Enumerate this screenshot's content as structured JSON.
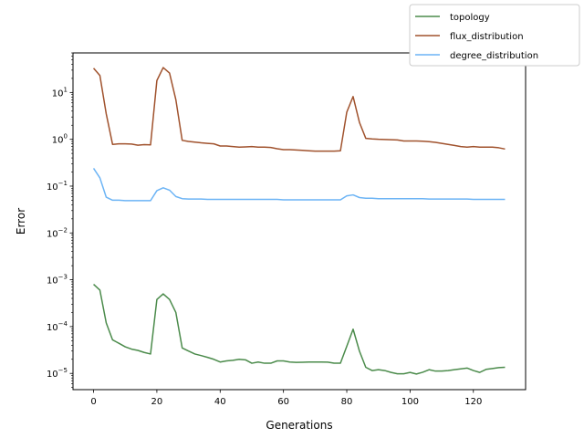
{
  "chart_data": {
    "type": "line",
    "xlabel": "Generations",
    "ylabel": "Error",
    "yscale": "log",
    "xlim": [
      -6.5,
      136.5
    ],
    "ylim": [
      4.5e-06,
      70
    ],
    "x_ticks": [
      0,
      20,
      40,
      60,
      80,
      100,
      120
    ],
    "y_ticks": [
      {
        "value": 1e-05,
        "base": "10",
        "exp": "−5"
      },
      {
        "value": 0.0001,
        "base": "10",
        "exp": "−4"
      },
      {
        "value": 0.001,
        "base": "10",
        "exp": "−3"
      },
      {
        "value": 0.01,
        "base": "10",
        "exp": "−2"
      },
      {
        "value": 0.1,
        "base": "10",
        "exp": "−1"
      },
      {
        "value": 1,
        "base": "10",
        "exp": "0"
      },
      {
        "value": 10,
        "base": "10",
        "exp": "1"
      }
    ],
    "grid": false,
    "legend_position": "top-right, outside plot",
    "x": [
      0,
      2,
      4,
      6,
      8,
      10,
      12,
      14,
      16,
      18,
      20,
      22,
      24,
      26,
      28,
      30,
      32,
      34,
      36,
      38,
      40,
      42,
      44,
      46,
      48,
      50,
      52,
      54,
      56,
      58,
      60,
      62,
      64,
      66,
      68,
      70,
      72,
      74,
      76,
      78,
      80,
      82,
      84,
      86,
      88,
      90,
      92,
      94,
      96,
      98,
      100,
      102,
      104,
      106,
      108,
      110,
      112,
      114,
      116,
      118,
      120,
      122,
      124,
      126,
      128,
      130
    ],
    "series": [
      {
        "name": "topology",
        "color": "#4b8b4b",
        "values": [
          0.0008,
          0.0006,
          0.00012,
          5.2e-05,
          4.4e-05,
          3.7e-05,
          3.3e-05,
          3.1e-05,
          2.8e-05,
          2.6e-05,
          0.00038,
          0.0005,
          0.00038,
          0.0002,
          3.5e-05,
          3e-05,
          2.6e-05,
          2.4e-05,
          2.2e-05,
          2e-05,
          1.75e-05,
          1.85e-05,
          1.9e-05,
          2e-05,
          1.95e-05,
          1.65e-05,
          1.75e-05,
          1.65e-05,
          1.65e-05,
          1.85e-05,
          1.85e-05,
          1.75e-05,
          1.72e-05,
          1.73e-05,
          1.75e-05,
          1.75e-05,
          1.75e-05,
          1.74e-05,
          1.65e-05,
          1.65e-05,
          3.8e-05,
          8.8e-05,
          3e-05,
          1.35e-05,
          1.15e-05,
          1.2e-05,
          1.15e-05,
          1.05e-05,
          9.8e-06,
          9.8e-06,
          1.05e-05,
          9.7e-06,
          1.06e-05,
          1.2e-05,
          1.12e-05,
          1.12e-05,
          1.15e-05,
          1.2e-05,
          1.25e-05,
          1.3e-05,
          1.15e-05,
          1.05e-05,
          1.22e-05,
          1.27e-05,
          1.33e-05,
          1.35e-05
        ]
      },
      {
        "name": "flux_distribution",
        "color": "#a0522d",
        "values": [
          33,
          23,
          3.5,
          0.78,
          0.8,
          0.8,
          0.79,
          0.75,
          0.77,
          0.76,
          18,
          34,
          26,
          7,
          0.95,
          0.9,
          0.87,
          0.84,
          0.82,
          0.8,
          0.72,
          0.72,
          0.7,
          0.68,
          0.69,
          0.7,
          0.68,
          0.68,
          0.67,
          0.63,
          0.6,
          0.6,
          0.59,
          0.58,
          0.57,
          0.56,
          0.56,
          0.56,
          0.56,
          0.57,
          3.8,
          8.2,
          2.3,
          1.05,
          1.02,
          1.0,
          0.99,
          0.98,
          0.97,
          0.92,
          0.92,
          0.92,
          0.91,
          0.89,
          0.86,
          0.82,
          0.78,
          0.74,
          0.7,
          0.68,
          0.7,
          0.68,
          0.68,
          0.68,
          0.66,
          0.62
        ]
      },
      {
        "name": "degree_distribution",
        "color": "#6cb4f5",
        "values": [
          0.24,
          0.15,
          0.058,
          0.05,
          0.05,
          0.049,
          0.049,
          0.049,
          0.049,
          0.049,
          0.08,
          0.092,
          0.082,
          0.06,
          0.054,
          0.053,
          0.053,
          0.053,
          0.052,
          0.052,
          0.052,
          0.052,
          0.052,
          0.052,
          0.052,
          0.052,
          0.052,
          0.052,
          0.052,
          0.052,
          0.051,
          0.051,
          0.051,
          0.051,
          0.051,
          0.051,
          0.051,
          0.051,
          0.051,
          0.051,
          0.062,
          0.065,
          0.057,
          0.055,
          0.055,
          0.054,
          0.054,
          0.054,
          0.054,
          0.054,
          0.054,
          0.054,
          0.054,
          0.053,
          0.053,
          0.053,
          0.053,
          0.053,
          0.053,
          0.053,
          0.052,
          0.052,
          0.052,
          0.052,
          0.052,
          0.052
        ]
      }
    ]
  }
}
